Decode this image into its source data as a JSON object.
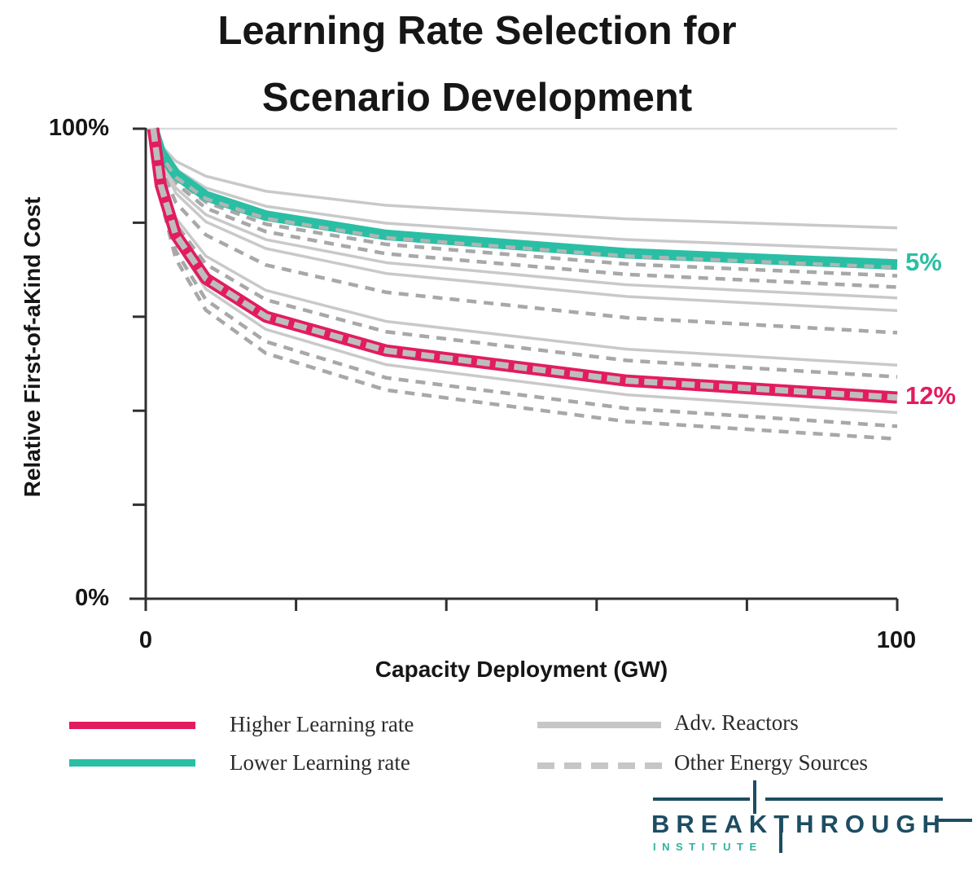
{
  "title": {
    "line1": "Learning Rate Selection for",
    "line2": "Scenario Development"
  },
  "axes": {
    "y_label": "Relative First-of-aKind Cost",
    "x_label": "Capacity Deployment (GW)",
    "y_tick_top": "100%",
    "y_tick_bottom": "0%",
    "x_tick_left": "0",
    "x_tick_right": "100"
  },
  "annotations": {
    "lower": {
      "label": "5%",
      "color": "#2ABFA4"
    },
    "higher": {
      "label": "12%",
      "color": "#E21C5F"
    }
  },
  "chart_data": {
    "type": "line",
    "title": "Learning Rate Selection for Scenario Development",
    "xlabel": "Capacity Deployment (GW)",
    "ylabel": "Relative First-of-aKind Cost",
    "xlim": [
      0,
      100
    ],
    "ylim": [
      0,
      100
    ],
    "x_ticks": [
      0,
      20,
      40,
      60,
      80,
      100
    ],
    "y_ticks": [
      0,
      20,
      40,
      60,
      80,
      100
    ],
    "x_tick_labels_shown": [
      "0",
      "100"
    ],
    "y_tick_labels_shown": [
      "0%",
      "100%"
    ],
    "gridlines_pct": [
      100
    ],
    "grid_color": "#DCDCDC",
    "axis_color": "#2F2F2F",
    "legend_position": "bottom",
    "x_samples_gw": [
      1,
      2,
      4,
      8,
      16,
      32,
      64,
      100
    ],
    "series": [
      {
        "name": "adv-reactor-line-1",
        "group": "Adv. Reactors",
        "learning_rate": "3.5%",
        "style": "solid",
        "color": "#C9C9C9",
        "width": 3.5,
        "values_pct": [
          100,
          96.5,
          93.1,
          89.9,
          86.7,
          83.7,
          80.8,
          78.9
        ]
      },
      {
        "name": "adv-reactor-line-2",
        "group": "Adv. Reactors",
        "learning_rate": "4.4%",
        "style": "solid",
        "color": "#C9C9C9",
        "width": 3.5,
        "values_pct": [
          100,
          95.6,
          91.4,
          87.4,
          83.5,
          79.9,
          76.4,
          74.2
        ]
      },
      {
        "name": "lower-learning-rate-line",
        "group": "Lower Learning rate",
        "learning_rate": "5%",
        "style": "band",
        "color": "#2ABFA4",
        "width": 13,
        "overlay": {
          "color": "#AEB6B3",
          "width": 4.5,
          "dash": "12 9",
          "offset_y": 3.5
        },
        "values_pct": [
          100,
          95,
          90.3,
          85.7,
          81.5,
          77.4,
          73.5,
          71.1
        ]
      },
      {
        "name": "other-energy-line-1",
        "group": "Other Energy Sources",
        "learning_rate": "5.5%",
        "style": "dashed",
        "color": "#A8A8A8",
        "width": 4.5,
        "dash": "12 9",
        "values_pct": [
          100,
          94.5,
          89.3,
          84.4,
          79.7,
          75.4,
          71.2,
          68.7
        ]
      },
      {
        "name": "other-energy-line-2",
        "group": "Other Energy Sources",
        "learning_rate": "6%",
        "style": "dashed",
        "color": "#A8A8A8",
        "width": 4.5,
        "dash": "12 9",
        "values_pct": [
          100,
          94,
          88.4,
          83.1,
          78.1,
          73.4,
          69,
          66.3
        ]
      },
      {
        "name": "adv-reactor-line-3",
        "group": "Adv. Reactors",
        "learning_rate": "6.5%",
        "style": "solid",
        "color": "#C9C9C9",
        "width": 3.5,
        "values_pct": [
          100,
          93.5,
          87.4,
          81.7,
          76.4,
          71.5,
          66.8,
          64
        ]
      },
      {
        "name": "adv-reactor-line-4",
        "group": "Adv. Reactors",
        "learning_rate": "7.1%",
        "style": "solid",
        "color": "#C9C9C9",
        "width": 3.5,
        "values_pct": [
          100,
          92.9,
          86.3,
          80.2,
          74.5,
          69.2,
          64.3,
          61.3
        ]
      },
      {
        "name": "other-energy-line-3",
        "group": "Other Energy Sources",
        "learning_rate": "8.2%",
        "style": "dashed",
        "color": "#A8A8A8",
        "width": 4.5,
        "dash": "12 9",
        "values_pct": [
          100,
          91.8,
          84.3,
          77.4,
          71,
          65.2,
          59.8,
          56.6
        ]
      },
      {
        "name": "adv-reactor-line-5",
        "group": "Adv. Reactors",
        "learning_rate": "10%",
        "style": "solid",
        "color": "#C9C9C9",
        "width": 3.5,
        "values_pct": [
          100,
          90,
          81,
          72.9,
          65.6,
          59,
          53.1,
          49.7
        ]
      },
      {
        "name": "other-energy-line-4",
        "group": "Other Energy Sources",
        "learning_rate": "10.7%",
        "style": "dashed",
        "color": "#A8A8A8",
        "width": 4.5,
        "dash": "12 9",
        "values_pct": [
          100,
          89.3,
          79.7,
          71.2,
          63.6,
          56.8,
          50.7,
          47.2
        ]
      },
      {
        "name": "higher-learning-rate-line",
        "group": "Higher Learning rate",
        "learning_rate": "12%",
        "style": "band",
        "color": "#E21C5F",
        "width": 15,
        "overlay": {
          "color": "#BDBDBD",
          "width": 7.5,
          "dash": "16 7",
          "offset_y": 0
        },
        "values_pct": [
          100,
          88,
          77.4,
          68.1,
          60,
          52.8,
          46.4,
          42.8
        ]
      },
      {
        "name": "adv-reactor-line-6",
        "group": "Adv. Reactors",
        "learning_rate": "13%",
        "style": "solid",
        "color": "#C9C9C9",
        "width": 3.5,
        "values_pct": [
          100,
          87,
          75.7,
          65.9,
          57.3,
          49.8,
          43.4,
          39.6
        ]
      },
      {
        "name": "other-energy-line-5",
        "group": "Other Energy Sources",
        "learning_rate": "14%",
        "style": "dashed",
        "color": "#A8A8A8",
        "width": 4.5,
        "dash": "12 9",
        "values_pct": [
          100,
          86,
          74,
          63.6,
          54.7,
          47,
          40.5,
          36.7
        ]
      },
      {
        "name": "other-energy-line-6",
        "group": "Other Energy Sources",
        "learning_rate": "15%",
        "style": "dashed",
        "color": "#A8A8A8",
        "width": 4.5,
        "dash": "12 9",
        "values_pct": [
          100,
          85,
          72.3,
          61.4,
          52.2,
          44.4,
          37.7,
          34
        ]
      }
    ],
    "annotations": [
      {
        "text": "5%",
        "color": "#2ABFA4",
        "x": 100,
        "y_pct": 71.1
      },
      {
        "text": "12%",
        "color": "#E21C5F",
        "x": 100,
        "y_pct": 42.8
      }
    ]
  },
  "legend": {
    "left_column": [
      {
        "label": "Higher Learning rate",
        "swatch_style": "solid",
        "swatch_color": "#E21C5F"
      },
      {
        "label": "Lower Learning rate",
        "swatch_style": "solid",
        "swatch_color": "#2ABFA4"
      }
    ],
    "right_column": [
      {
        "label": "Adv. Reactors",
        "swatch_style": "solid",
        "swatch_color": "#C6C6C6"
      },
      {
        "label": "Other Energy Sources",
        "swatch_style": "dashed",
        "swatch_color": "#C6C6C6"
      }
    ]
  },
  "logo": {
    "line1": "BREAKTHROUGH",
    "line2": "INSTITUTE",
    "navy": "#1D4D62",
    "teal": "#2FB3A0"
  }
}
